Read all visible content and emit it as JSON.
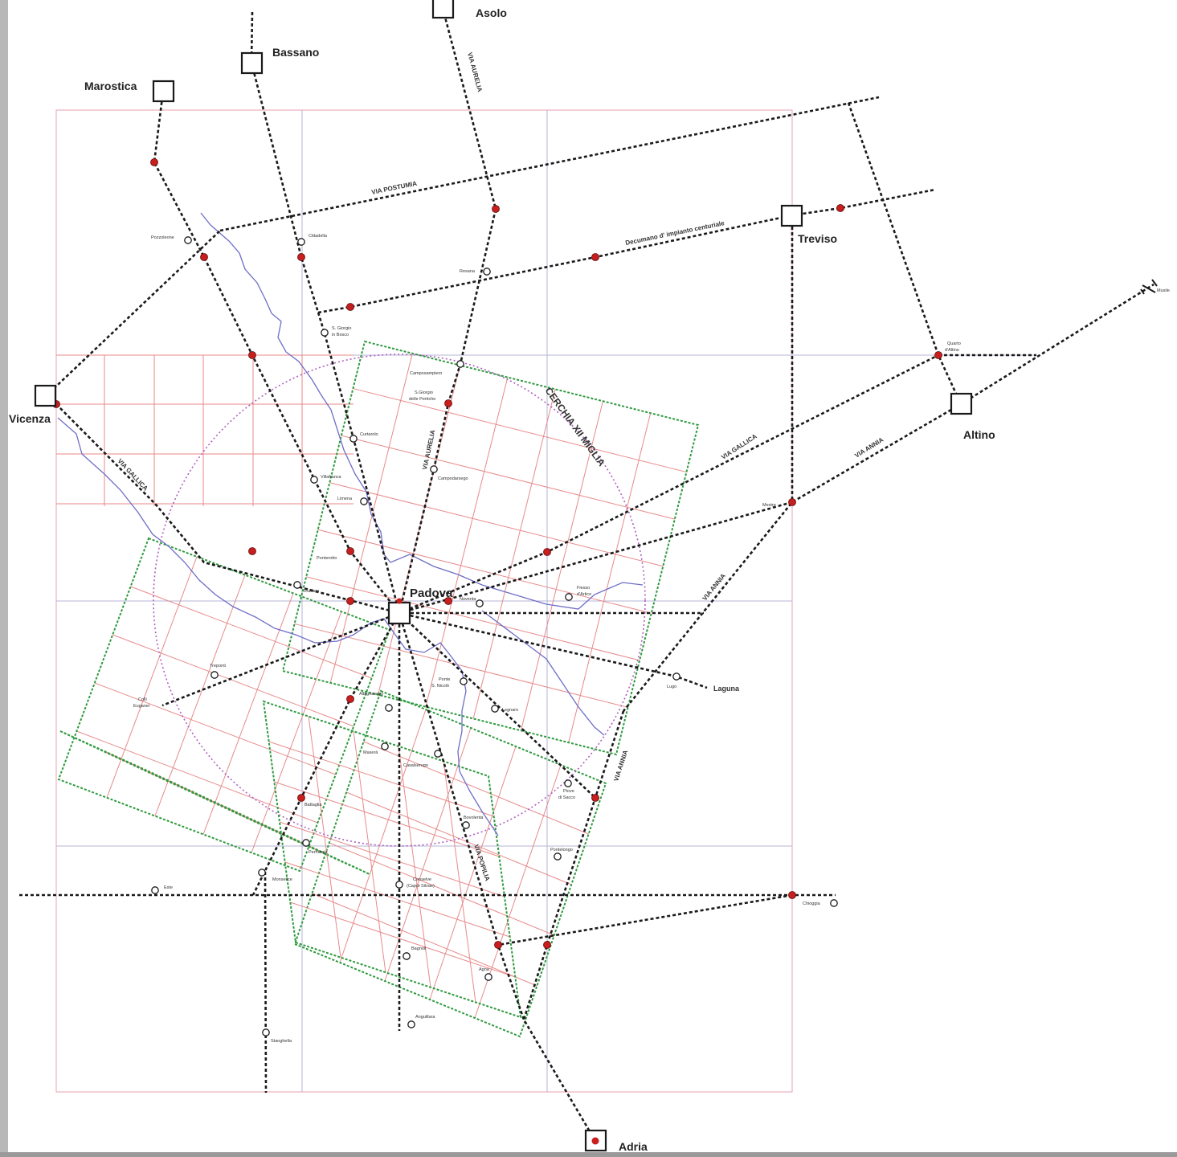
{
  "colors": {
    "road": "#1a1a1a",
    "centuriation": "#e88a8a",
    "centuriation_border": "#2e9a3e",
    "outer_grid": "#b4b4d6",
    "outer_border": "#e8a0b0",
    "circle": "#b060c0",
    "river": "#6e6ec8",
    "red_dot": "#c81e1e"
  },
  "cities": {
    "asolo": "Asolo",
    "bassano": "Bassano",
    "marostica": "Marostica",
    "treviso": "Treviso",
    "vicenza": "Vicenza",
    "altino": "Altino",
    "padova": "Padova",
    "adria": "Adria"
  },
  "roads": {
    "via_postumia": "VIA POSTUMIA",
    "via_aurelia_north": "VIA AURELIA",
    "via_aurelia_south": "VIA AURELIA",
    "decumano": "Decumano d' impianto centuriale",
    "cerchia": "CERCHIA XII MIGLIA",
    "via_gallica_east": "VIA GALLICA",
    "via_gallica_west": "VIA GALLICA",
    "via_annia_ne": "VIA ANNIA",
    "via_annia_mid": "VIA ANNIA",
    "via_annia_south": "VIA ANNIA",
    "via_popilia": "VIA POPILIA"
  },
  "places": {
    "pozzoleone": "Pozzoleone",
    "cittadella": "Cittadella",
    "resana": "Resana",
    "sgiorgio_bosco": [
      "S. Giorgio",
      "in Bosco"
    ],
    "camposampiero": "Camposampiero",
    "sgiorgio_pertiche": [
      "S.Giorgio",
      "delle Pertiche"
    ],
    "curtarolo": "Curtarolo",
    "campodarsego": "Campodarsego",
    "villafranca": "Villafranca",
    "limena": "Limena",
    "ponterotto": "Ponterotto",
    "rubano": "Rubano",
    "noventa": "Noventa",
    "fiesso": [
      "Fiesso",
      "d'Artico"
    ],
    "mestre": "Mestre",
    "quarto": [
      "Quarto",
      "d'Altino"
    ],
    "musile": "Musile",
    "laguna": "Laguna",
    "lugo": "Lugo",
    "tregenti": "Treponti",
    "colli": [
      "Colli",
      "Euganei"
    ],
    "albignasego": "Albignasego",
    "ponte_snicolo": [
      "Ponte",
      "S. Nicolò"
    ],
    "legnaro": "Legnaro",
    "maserà": "Maserà",
    "casalserugo": "Casalserugo",
    "piove": [
      "Piove",
      "di Sacco"
    ],
    "bovolenta": "Bovolenta",
    "pontelongo": "Pontelongo",
    "battaglia": "Battaglia",
    "pernumia": "Pernumia",
    "monselice": "Monselice",
    "este": "Este",
    "conselve": [
      "Conselve",
      "(Caput Silvae)"
    ],
    "chioggia": "Chioggia",
    "bagnoli": "Bagnoli",
    "agna": "Agna",
    "anguillara": "Anguillara",
    "stanghella": "Stanghella"
  }
}
